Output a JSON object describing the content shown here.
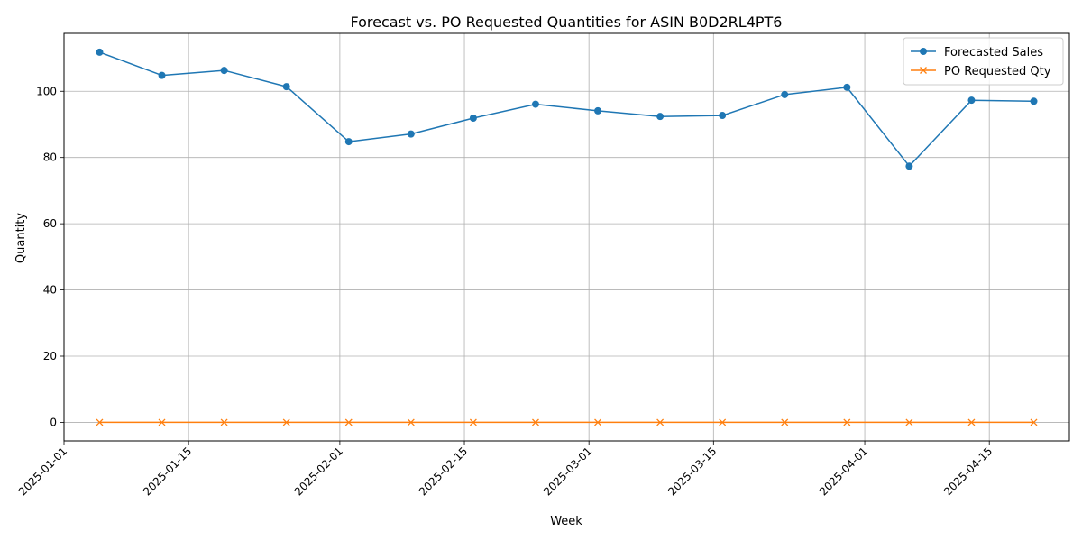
{
  "chart_data": {
    "type": "line",
    "title": "Forecast vs. PO Requested Quantities for ASIN B0D2RL4PT6",
    "xlabel": "Week",
    "ylabel": "Quantity",
    "x": [
      "2025-01-05",
      "2025-01-12",
      "2025-01-19",
      "2025-01-26",
      "2025-02-02",
      "2025-02-09",
      "2025-02-16",
      "2025-02-23",
      "2025-03-02",
      "2025-03-09",
      "2025-03-16",
      "2025-03-23",
      "2025-03-30",
      "2025-04-06",
      "2025-04-13",
      "2025-04-20"
    ],
    "xlim": [
      "2025-01-01",
      "2025-04-24"
    ],
    "xticks": [
      "2025-01-01",
      "2025-01-15",
      "2025-02-01",
      "2025-02-15",
      "2025-03-01",
      "2025-03-15",
      "2025-04-01",
      "2025-04-15"
    ],
    "ylim": [
      -5.6,
      117.5
    ],
    "yticks": [
      0,
      20,
      40,
      60,
      80,
      100
    ],
    "grid": true,
    "legend_position": "top-right",
    "series": [
      {
        "name": "Forecasted Sales",
        "color": "#1f77b4",
        "marker": "circle",
        "values": [
          111.8,
          104.8,
          106.3,
          101.4,
          84.8,
          87.1,
          91.9,
          96.1,
          94.1,
          92.4,
          92.7,
          99.0,
          101.2,
          77.4,
          97.3,
          97.0
        ]
      },
      {
        "name": "PO Requested Qty",
        "color": "#ff7f0e",
        "marker": "x",
        "values": [
          0,
          0,
          0,
          0,
          0,
          0,
          0,
          0,
          0,
          0,
          0,
          0,
          0,
          0,
          0,
          0
        ]
      }
    ]
  }
}
